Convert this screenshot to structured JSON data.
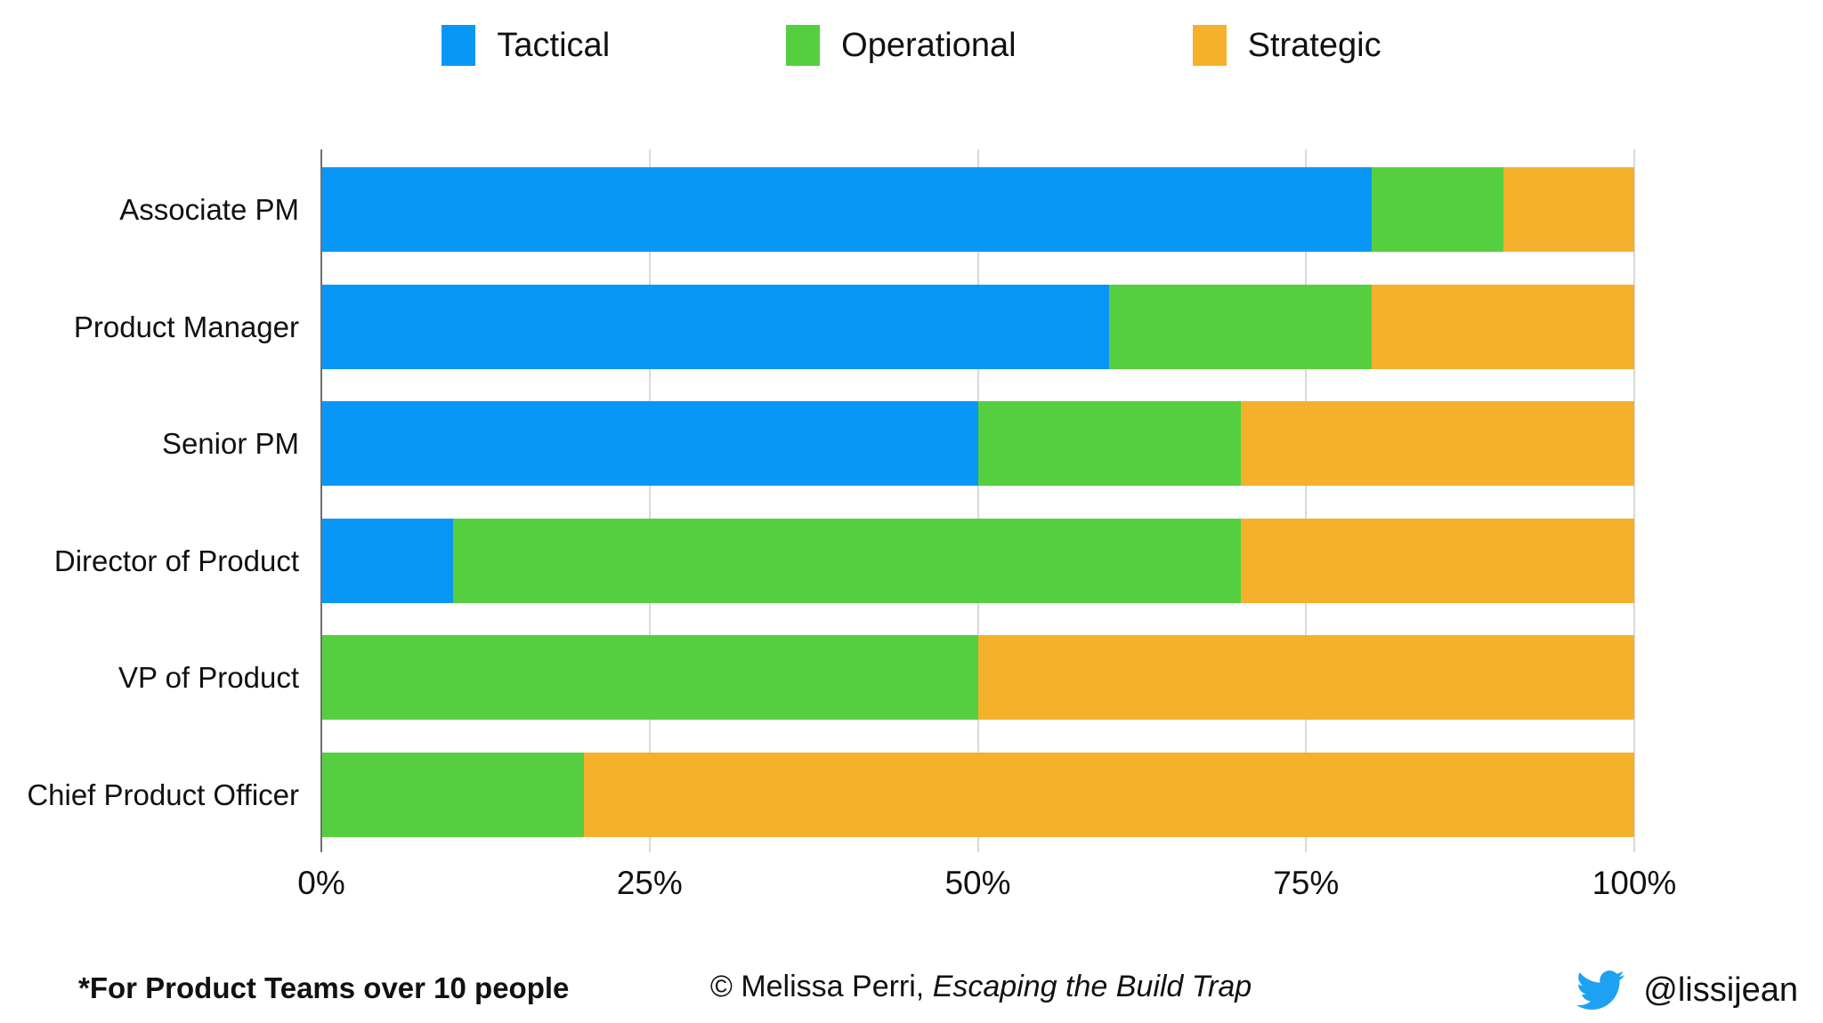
{
  "colors": {
    "tactical_blue": "#0997f7",
    "operational_green": "#55cf40",
    "strategic_orange": "#f5b12c",
    "twitter_blue": "#1da1f2",
    "gridline_gray": "#d9d9d9",
    "axis_gray": "#6f6f6f"
  },
  "chart_data": {
    "type": "bar",
    "orientation": "horizontal",
    "stacked": true,
    "title": "",
    "xlabel": "",
    "ylabel": "",
    "xlim": [
      0,
      100
    ],
    "grid": true,
    "legend_position": "top",
    "categories": [
      "Associate PM",
      "Product Manager",
      "Senior PM",
      "Director of Product",
      "VP of Product",
      "Chief Product Officer"
    ],
    "series": [
      {
        "name": "Tactical",
        "color": "#0997f7",
        "values": [
          80,
          60,
          50,
          10,
          0,
          0
        ]
      },
      {
        "name": "Operational",
        "color": "#55cf40",
        "values": [
          10,
          20,
          20,
          60,
          50,
          20
        ]
      },
      {
        "name": "Strategic",
        "color": "#f5b12c",
        "values": [
          10,
          20,
          30,
          30,
          50,
          80
        ]
      }
    ],
    "x_ticks": [
      "0%",
      "25%",
      "50%",
      "75%",
      "100%"
    ]
  },
  "footer": {
    "note": "*For Product Teams over 10 people",
    "credit_prefix": "© Melissa Perri, ",
    "credit_title": "Escaping the Build Trap",
    "twitter_icon": "twitter-bird-icon",
    "twitter_handle": "@lissijean"
  }
}
